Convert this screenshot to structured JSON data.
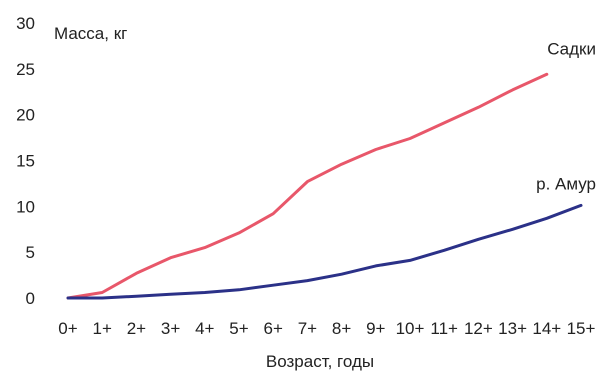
{
  "chart_data": {
    "type": "line",
    "title": "",
    "ylabel": "Масса, кг",
    "xlabel": "Возраст, годы",
    "x": [
      "0+",
      "1+",
      "2+",
      "3+",
      "4+",
      "5+",
      "6+",
      "7+",
      "8+",
      "9+",
      "10+",
      "11+",
      "12+",
      "13+",
      "14+",
      "15+"
    ],
    "ylim": [
      0,
      30
    ],
    "yticks": [
      "0",
      "5",
      "10",
      "15",
      "20",
      "25",
      "30"
    ],
    "grid": false,
    "series": [
      {
        "name": "Садки",
        "color": "#e8576a",
        "values": [
          0,
          0.6,
          2.7,
          4.4,
          5.5,
          7.1,
          9.2,
          12.7,
          14.6,
          16.2,
          17.4,
          19.1,
          20.8,
          22.7,
          24.4,
          null
        ]
      },
      {
        "name": "р. Амур",
        "color": "#2b3188",
        "values": [
          0,
          0,
          0.2,
          0.4,
          0.6,
          0.9,
          1.4,
          1.9,
          2.6,
          3.5,
          4.1,
          5.2,
          6.4,
          7.5,
          8.7,
          10.1
        ]
      }
    ]
  }
}
